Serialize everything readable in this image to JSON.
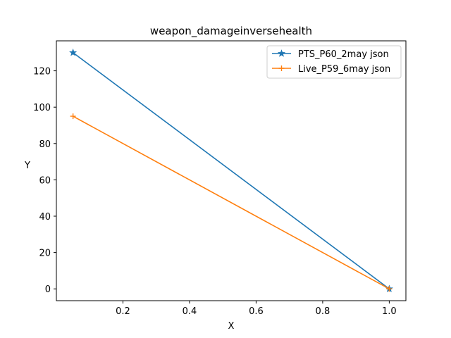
{
  "chart_data": {
    "type": "line",
    "title": "weapon_damageinversehealth",
    "xlabel": "X",
    "ylabel": "Y",
    "xlim": [
      0.0,
      1.05
    ],
    "ylim": [
      -6.5,
      136.5
    ],
    "xticks": [
      0.2,
      0.4,
      0.6,
      0.8,
      1.0
    ],
    "xtick_labels": [
      "0.2",
      "0.4",
      "0.6",
      "0.8",
      "1.0"
    ],
    "yticks": [
      0,
      20,
      40,
      60,
      80,
      100,
      120
    ],
    "ytick_labels": [
      "0",
      "20",
      "40",
      "60",
      "80",
      "100",
      "120"
    ],
    "legend_position": "top-right",
    "grid": false,
    "series": [
      {
        "name": "PTS_P60_2may json",
        "color": "#1f77b4",
        "marker": "star",
        "x": [
          0.05,
          1.0
        ],
        "y": [
          130,
          0
        ]
      },
      {
        "name": "Live_P59_6may json",
        "color": "#ff7f0e",
        "marker": "plus",
        "x": [
          0.05,
          1.0
        ],
        "y": [
          95,
          0
        ]
      }
    ]
  }
}
